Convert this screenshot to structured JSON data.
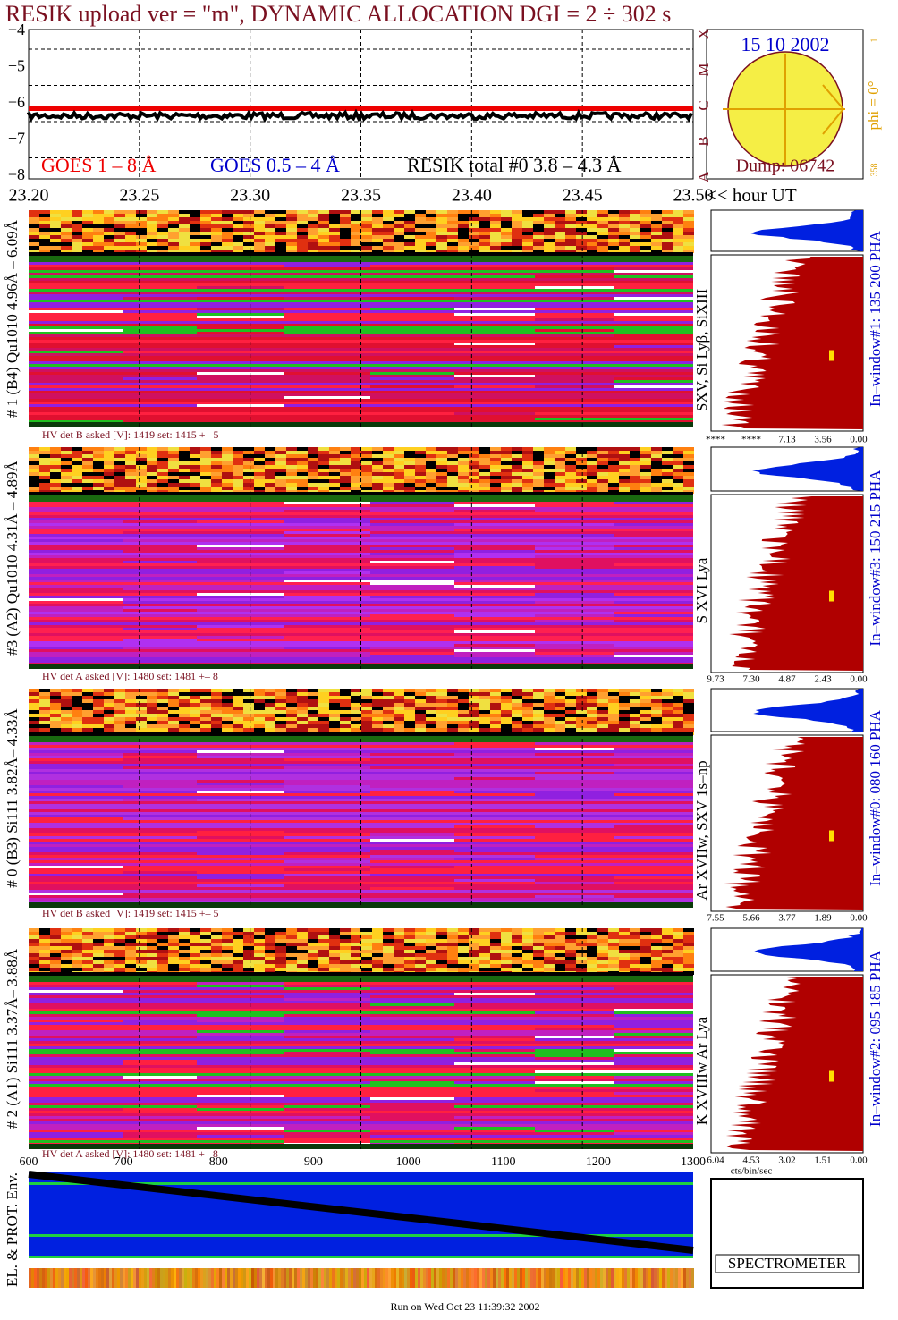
{
  "header": {
    "title": "RESIK upload ver = \"m\", DYNAMIC ALLOCATION  DGI =   2 ÷ 302 s"
  },
  "goes_panel": {
    "yticks": [
      "−4",
      "−5",
      "−6",
      "−7",
      "−8"
    ],
    "class_labels": [
      "X",
      "M",
      "C",
      "B",
      "A"
    ],
    "legend": [
      "GOES 1 – 8 Å",
      "GOES 0.5 – 4 Å",
      "RESIK total #0  3.8 – 4.3 Å"
    ]
  },
  "sun": {
    "date": "15 10 2002",
    "phi": "phi =  0°",
    "dump": "Dump: 06742",
    "scale_top": "1",
    "scale_bottom": "358"
  },
  "time_axis": {
    "ticks": [
      "23.20",
      "23.25",
      "23.30",
      "23.35",
      "23.40",
      "23.45",
      "23.50"
    ],
    "unit": "<< hour UT"
  },
  "channels": [
    {
      "range": "# 1 (B4) Qu1010 4.96Å – 6.09Å",
      "lines": "SXV, Si Lyβ, SiXIII",
      "hv": "HV det B asked [V]:  1419 set:  1415 +–   5",
      "window": "In–window#1:  135 200 PHA",
      "pha_ticks": [
        "****",
        "****",
        "7.13",
        "3.56",
        "0.00"
      ]
    },
    {
      "range": "#3 (A2) Qu1010  4.31Å – 4.89Å",
      "lines": "S XVI Lya",
      "hv": "HV det A asked [V]:  1480 set:  1481 +–   8",
      "window": "In–window#3:  150 215 PHA",
      "pha_ticks": [
        "9.73",
        "7.30",
        "4.87",
        "2.43",
        "0.00"
      ]
    },
    {
      "range": "# 0 (B3) Si111  3.82Å– 4.33Å",
      "lines": "Ar XVIIw,  SXV 1s–np",
      "hv": "HV det B asked [V]:  1419 set:  1415 +–   5",
      "window": "In–window#0:  080 160 PHA",
      "pha_ticks": [
        "7.55",
        "5.66",
        "3.77",
        "1.89",
        "0.00"
      ]
    },
    {
      "range": "# 2 (A1) Si111  3.37Å– 3.88Å",
      "lines": "K XVIIIw  Ar Lya",
      "hv": "HV det A asked [V]:  1480 set:  1481 +–   8",
      "window": "In–window#2:  095 185 PHA",
      "pha_ticks": [
        "6.04",
        "4.53",
        "3.02",
        "1.51",
        "0.00"
      ]
    }
  ],
  "bottom": {
    "pha_unit": "cts/bin/sec",
    "env_label": "EL. & PROT. Env.",
    "env_ticks": [
      "600",
      "700",
      "800",
      "900",
      "1000",
      "1100",
      "1200",
      "1300"
    ],
    "logo": "SPECTROMETER",
    "footer": "Run on Wed Oct 23 11:39:32 2002"
  }
}
